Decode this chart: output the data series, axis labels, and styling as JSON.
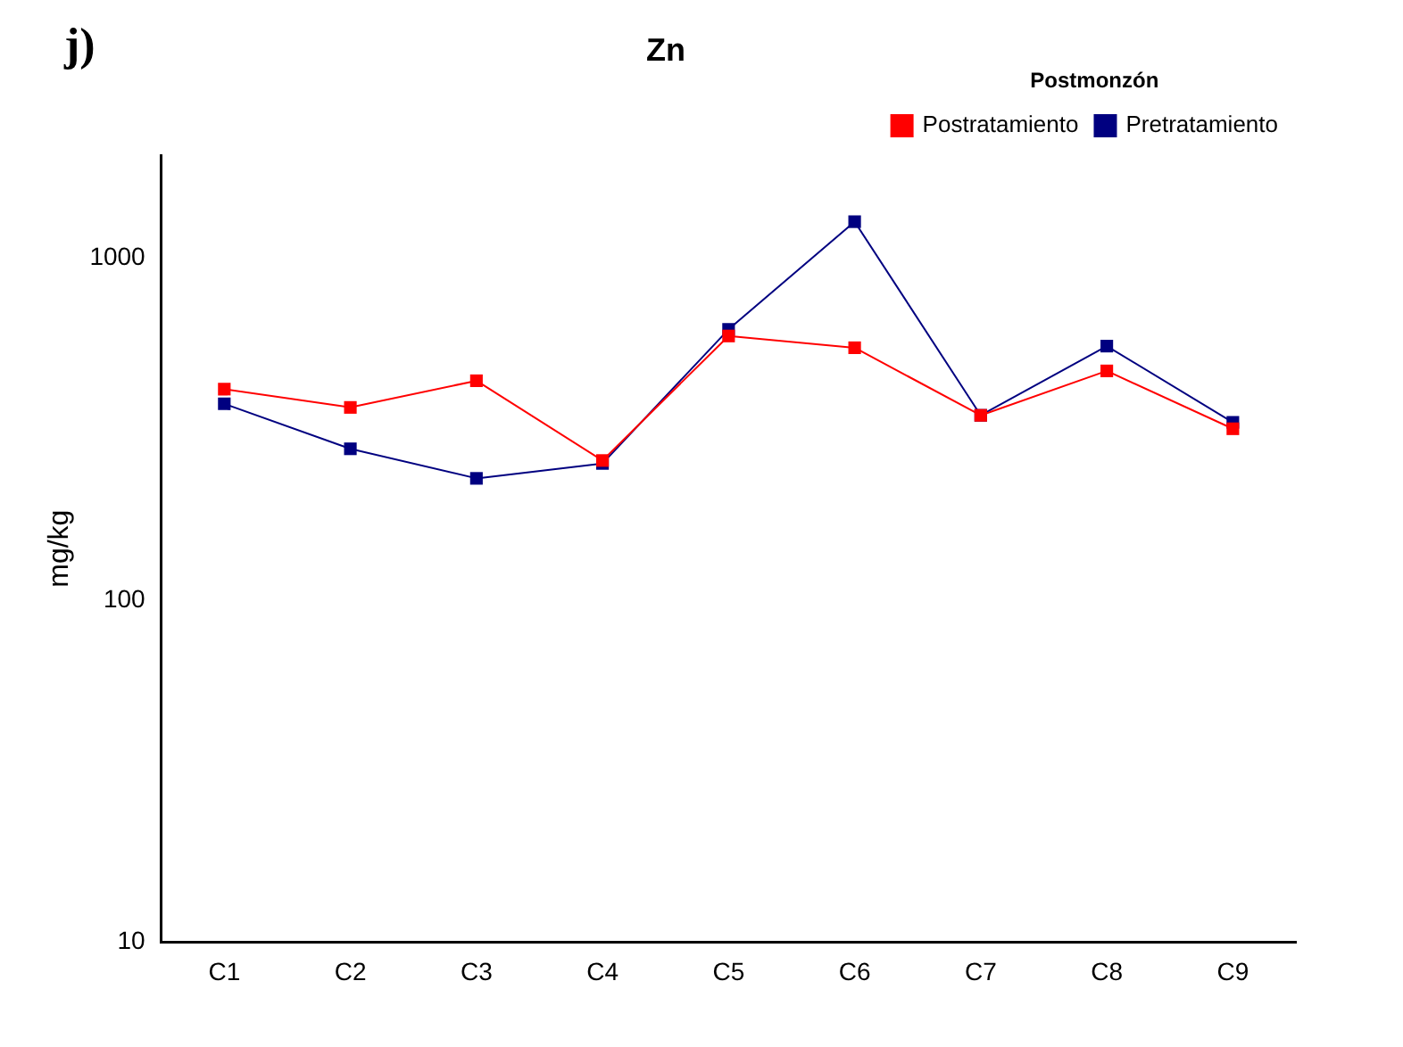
{
  "chart_data": {
    "type": "line",
    "title": "Zn",
    "ylabel": "mg/kg",
    "legend_title": "Postmonzón",
    "annotations": [
      "j)"
    ],
    "categories": [
      "C1",
      "C2",
      "C3",
      "C4",
      "C5",
      "C6",
      "C7",
      "C8",
      "C9"
    ],
    "series": [
      {
        "name": "Postratamiento",
        "color": "#ff0000",
        "values": [
          414,
          366,
          438,
          256,
          592,
          547,
          347,
          468,
          317
        ]
      },
      {
        "name": "Pretratamiento",
        "color": "#000080",
        "values": [
          375,
          277,
          227,
          251,
          619,
          1278,
          347,
          553,
          331
        ]
      }
    ],
    "log": "y",
    "ylim": [
      10,
      2000
    ],
    "yticks": [
      10,
      100,
      1000
    ],
    "grid": false,
    "legend": "top right",
    "marker": "square",
    "line_style": "solid"
  }
}
